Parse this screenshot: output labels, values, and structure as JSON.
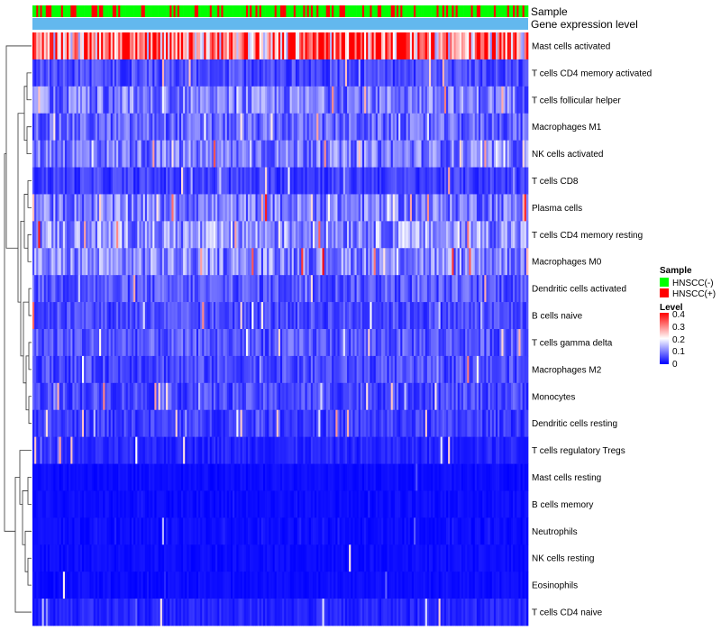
{
  "chart_data": {
    "type": "heatmap",
    "annotation_tracks": [
      {
        "name": "Sample"
      },
      {
        "name": "Gene expression level"
      }
    ],
    "rows": [
      "Mast cells activated",
      "T cells CD4 memory activated",
      "T cells follicular helper",
      "Macrophages M1",
      "NK cells activated",
      "T cells CD8",
      "Plasma cells",
      "T cells CD4 memory resting",
      "Macrophages M0",
      "Dendritic cells activated",
      "B cells naive",
      "T cells gamma delta",
      "Macrophages M2",
      "Monocytes",
      "Dendritic cells resting",
      "T cells regulatory  Tregs",
      "Mast cells resting",
      "B cells memory",
      "Neutrophils",
      "NK cells resting",
      "Eosinophils",
      "T cells CD4 naive"
    ],
    "row_mean_level": [
      0.33,
      0.06,
      0.1,
      0.08,
      0.1,
      0.05,
      0.1,
      0.12,
      0.11,
      0.07,
      0.06,
      0.07,
      0.06,
      0.06,
      0.05,
      0.03,
      0.01,
      0.02,
      0.02,
      0.01,
      0.01,
      0.03
    ],
    "n_samples": 260,
    "legend_sample": {
      "title": "Sample",
      "entries": [
        {
          "label": "HNSCC(-)",
          "color": "#00ff00"
        },
        {
          "label": "HNSCC(+)",
          "color": "#ff0000"
        }
      ]
    },
    "legend_level": {
      "title": "Level",
      "ticks": [
        "0.4",
        "0.3",
        "0.2",
        "0.1",
        "0"
      ],
      "range": [
        0,
        0.42
      ],
      "colors": [
        "#0000ff",
        "#ffffff",
        "#ff0000"
      ]
    },
    "annotation_colors": {
      "sample_negative": "#00ff00",
      "sample_positive": "#ff0000",
      "expression_level": "#63b8ee"
    }
  }
}
